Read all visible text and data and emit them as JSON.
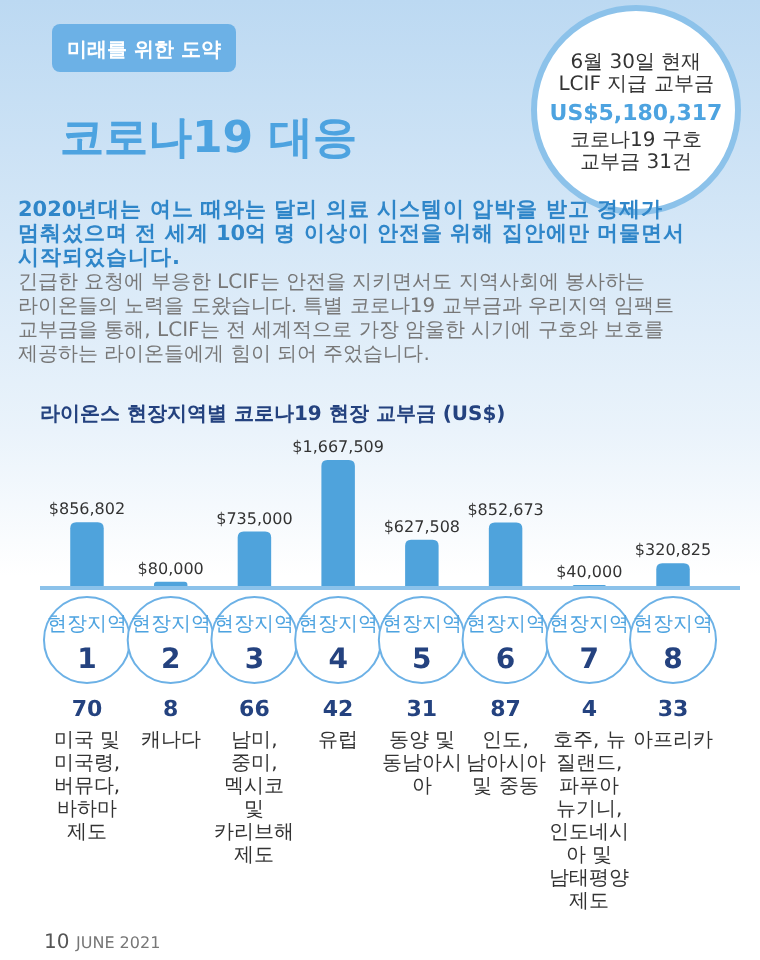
{
  "chart_data": {
    "type": "bar",
    "title": "라이온스 현장지역별 코로나19 현장 교부금 (US$)",
    "categories": [
      "현장지역 1",
      "현장지역 2",
      "현장지역 3",
      "현장지역 4",
      "현장지역 5",
      "현장지역 6",
      "현장지역 7",
      "현장지역 8"
    ],
    "values": [
      856802,
      80000,
      735000,
      1667509,
      627508,
      852673,
      40000,
      320825
    ],
    "value_labels": [
      "$856,802",
      "$80,000",
      "$735,000",
      "$1,667,509",
      "$627,508",
      "$852,673",
      "$40,000",
      "$320,825"
    ],
    "color": "#4fa3dc",
    "annotations": [
      "미래를 위한 도약",
      "코로나19 대응",
      "6월 30일 현재\nLCIF 지급 교부금",
      "US$5,180,317",
      "코로나19 구호\n교부금 31건",
      "2020년대는 여느 때와는 달리 의료 시스템이 압박을 받고 경제가 멈춰섰으며 전 세계 10억 명 이상이 안전을 위해 집안에만 머물면서 시작되었습니다.",
      "긴급한 요청에 부응한 LCIF는 안전을 지키면서도 지역사회에 봉사하는 라이온들의 노력을 도왔습니다. 특별 코로나19 교부금과 우리지역 임팩트 교부금을 통해, LCIF는 전 세계적으로 가장 암울한 시기에 구호와 보호를 제공하는 라이온들에게 힘이 되어 주었습니다.",
      "10",
      "JUNE 2021",
      "70",
      "8",
      "66",
      "42",
      "31",
      "87",
      "4",
      "33",
      "미국 및 미국령, 버뮤다, 바하마 제도",
      "캐나다",
      "남미, 중미, 멕시코 및 카리브해 제도",
      "유럽",
      "동양 및 동남아시아",
      "인도, 남아시아 및 중동",
      "호주, 뉴질랜드, 파푸아 뉴기니, 인도네시아 및 남태평양 제도",
      "아프리카"
    ]
  }
}
